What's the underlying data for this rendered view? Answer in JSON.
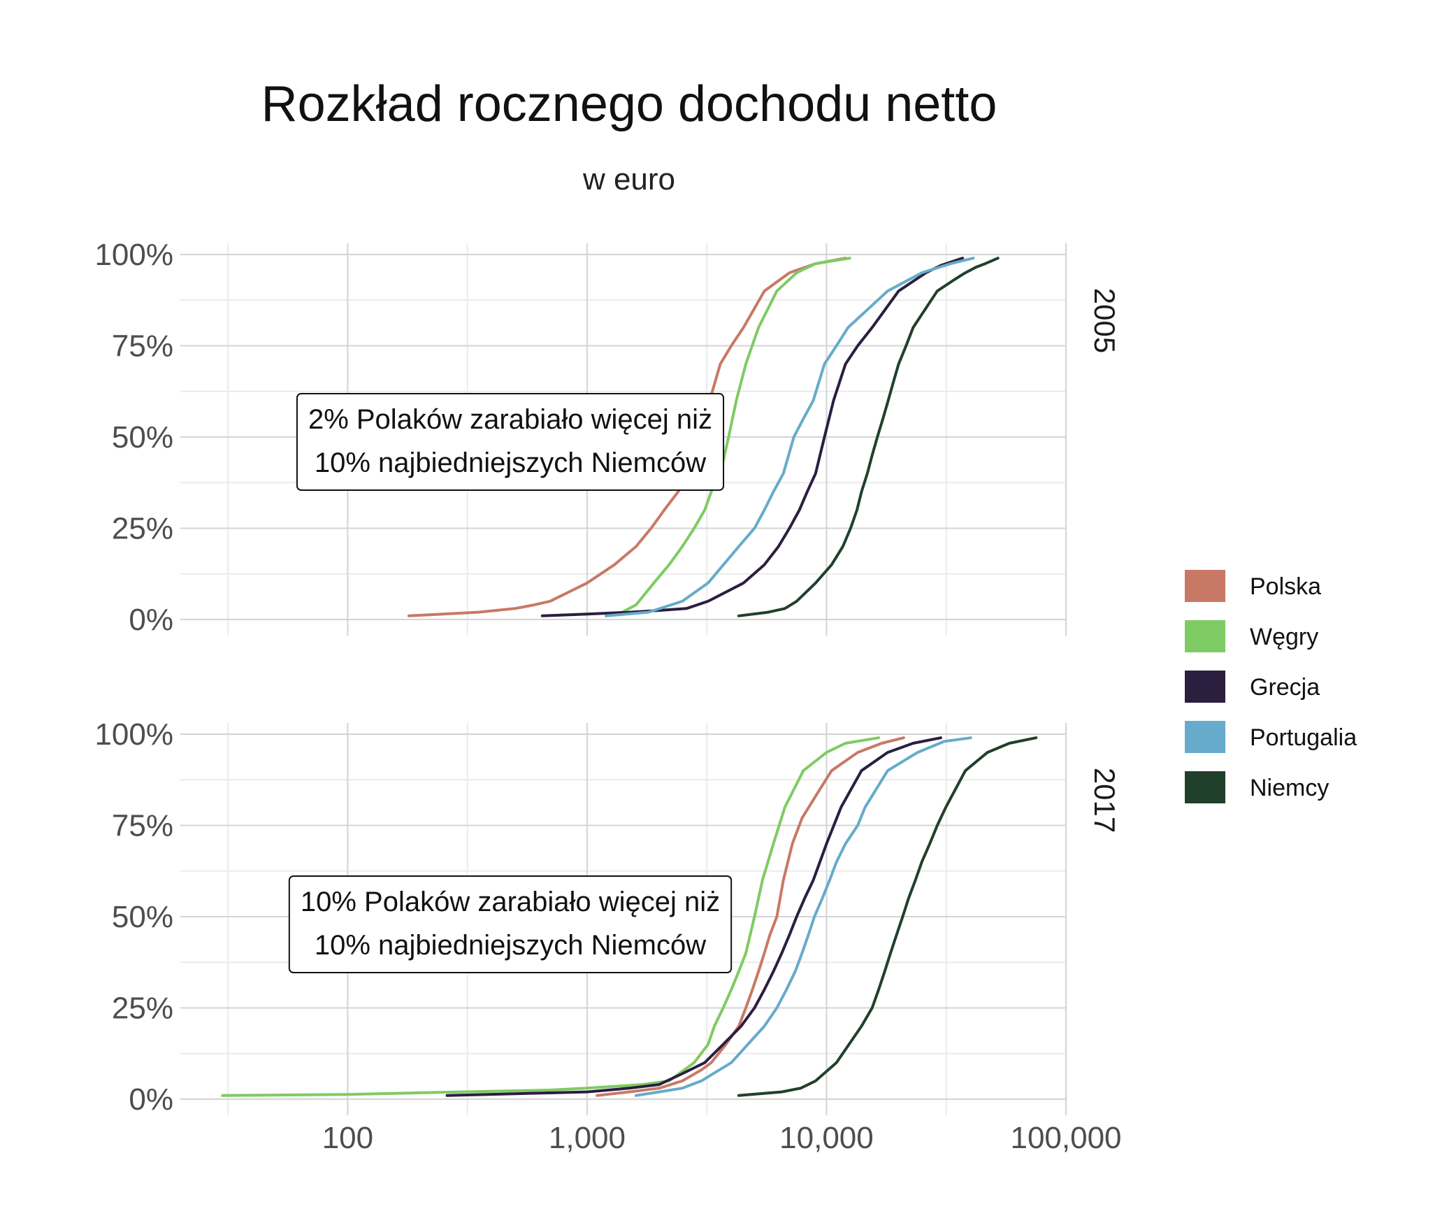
{
  "title": "Rozkład rocznego dochodu netto",
  "subtitle": "w euro",
  "colors": {
    "Polska": "#c87966",
    "Węgry": "#7fcb63",
    "Grecja": "#2c1e3f",
    "Portugalia": "#66abcb",
    "Niemcy": "#21402b"
  },
  "chart_data": {
    "type": "line",
    "x_scale": "log10",
    "xlim": [
      20,
      100000
    ],
    "ylim": [
      0,
      100
    ],
    "x_ticks": [
      100,
      1000,
      10000,
      100000
    ],
    "x_tick_labels": [
      "100",
      "1,000",
      "10,000",
      "100,000"
    ],
    "y_ticks": [
      0,
      25,
      50,
      75,
      100
    ],
    "y_tick_labels": [
      "0%",
      "25%",
      "50%",
      "75%",
      "100%"
    ],
    "grid": true,
    "legend": {
      "position": "right",
      "entries": [
        "Polska",
        "Węgry",
        "Grecja",
        "Portugalia",
        "Niemcy"
      ]
    },
    "panels": [
      {
        "strip": "2005",
        "annotation": [
          "2% Polaków zarabiało więcej niż",
          "10% najbiedniejszych Niemców"
        ],
        "series": [
          {
            "name": "Polska",
            "points": [
              [
                180,
                1
              ],
              [
                250,
                1.5
              ],
              [
                350,
                2
              ],
              [
                500,
                3
              ],
              [
                600,
                4
              ],
              [
                700,
                5
              ],
              [
                1000,
                10
              ],
              [
                1300,
                15
              ],
              [
                1600,
                20
              ],
              [
                1850,
                25
              ],
              [
                2100,
                30
              ],
              [
                2400,
                35
              ],
              [
                2700,
                40
              ],
              [
                3000,
                50
              ],
              [
                3250,
                60
              ],
              [
                3600,
                70
              ],
              [
                4000,
                75
              ],
              [
                4500,
                80
              ],
              [
                5500,
                90
              ],
              [
                7000,
                95
              ],
              [
                9000,
                97.5
              ],
              [
                12000,
                99
              ]
            ]
          },
          {
            "name": "Węgry",
            "points": [
              [
                1200,
                1
              ],
              [
                1400,
                2
              ],
              [
                1600,
                4
              ],
              [
                1900,
                10
              ],
              [
                2200,
                15
              ],
              [
                2500,
                20
              ],
              [
                2800,
                25
              ],
              [
                3100,
                30
              ],
              [
                3300,
                35
              ],
              [
                3600,
                40
              ],
              [
                3900,
                50
              ],
              [
                4200,
                60
              ],
              [
                4600,
                70
              ],
              [
                5200,
                80
              ],
              [
                6200,
                90
              ],
              [
                7500,
                95
              ],
              [
                9000,
                97.5
              ],
              [
                12500,
                99
              ]
            ]
          },
          {
            "name": "Grecja",
            "points": [
              [
                650,
                1
              ],
              [
                1000,
                1.5
              ],
              [
                1500,
                2
              ],
              [
                2000,
                2.5
              ],
              [
                2600,
                3
              ],
              [
                3200,
                5
              ],
              [
                4500,
                10
              ],
              [
                5500,
                15
              ],
              [
                6300,
                20
              ],
              [
                7000,
                25
              ],
              [
                7700,
                30
              ],
              [
                8300,
                35
              ],
              [
                9000,
                40
              ],
              [
                9800,
                50
              ],
              [
                10700,
                60
              ],
              [
                12000,
                70
              ],
              [
                13500,
                75
              ],
              [
                15500,
                80
              ],
              [
                20000,
                90
              ],
              [
                26000,
                95
              ],
              [
                30000,
                97
              ],
              [
                37000,
                99
              ]
            ]
          },
          {
            "name": "Portugalia",
            "points": [
              [
                1200,
                1
              ],
              [
                1800,
                2
              ],
              [
                2500,
                5
              ],
              [
                3200,
                10
              ],
              [
                4300,
                20
              ],
              [
                5000,
                25
              ],
              [
                5500,
                30
              ],
              [
                6000,
                35
              ],
              [
                6600,
                40
              ],
              [
                7300,
                50
              ],
              [
                8000,
                55
              ],
              [
                8800,
                60
              ],
              [
                9800,
                70
              ],
              [
                11000,
                75
              ],
              [
                12300,
                80
              ],
              [
                18000,
                90
              ],
              [
                25000,
                95
              ],
              [
                33000,
                97.5
              ],
              [
                41000,
                99
              ]
            ]
          },
          {
            "name": "Niemcy",
            "points": [
              [
                4300,
                1
              ],
              [
                5700,
                2
              ],
              [
                6700,
                3
              ],
              [
                7500,
                5
              ],
              [
                9000,
                10
              ],
              [
                10500,
                15
              ],
              [
                11700,
                20
              ],
              [
                12600,
                25
              ],
              [
                13400,
                30
              ],
              [
                14000,
                35
              ],
              [
                14800,
                40
              ],
              [
                15500,
                45
              ],
              [
                16300,
                50
              ],
              [
                17200,
                55
              ],
              [
                18100,
                60
              ],
              [
                19000,
                65
              ],
              [
                20000,
                70
              ],
              [
                21500,
                75
              ],
              [
                23000,
                80
              ],
              [
                29000,
                90
              ],
              [
                34000,
                93
              ],
              [
                38000,
                95
              ],
              [
                42000,
                96.5
              ],
              [
                46000,
                97.5
              ],
              [
                52000,
                99
              ]
            ]
          }
        ]
      },
      {
        "strip": "2017",
        "annotation": [
          "10% Polaków zarabiało więcej niż",
          "10% najbiedniejszych Niemców"
        ],
        "series": [
          {
            "name": "Polska",
            "points": [
              [
                1100,
                1
              ],
              [
                1500,
                2
              ],
              [
                2000,
                3
              ],
              [
                2500,
                5
              ],
              [
                3000,
                8
              ],
              [
                3300,
                10
              ],
              [
                3800,
                15
              ],
              [
                4300,
                20
              ],
              [
                4600,
                25
              ],
              [
                4900,
                30
              ],
              [
                5200,
                35
              ],
              [
                5500,
                40
              ],
              [
                5800,
                45
              ],
              [
                6200,
                50
              ],
              [
                6600,
                60
              ],
              [
                7200,
                70
              ],
              [
                7900,
                77
              ],
              [
                9000,
                83
              ],
              [
                10500,
                90
              ],
              [
                13500,
                95
              ],
              [
                17000,
                97.5
              ],
              [
                21000,
                99
              ]
            ]
          },
          {
            "name": "Węgry",
            "points": [
              [
                30,
                1
              ],
              [
                100,
                1.3
              ],
              [
                300,
                2
              ],
              [
                700,
                2.5
              ],
              [
                1000,
                3
              ],
              [
                1700,
                4
              ],
              [
                2200,
                5
              ],
              [
                2800,
                10
              ],
              [
                3200,
                15
              ],
              [
                3400,
                20
              ],
              [
                3700,
                25
              ],
              [
                4000,
                30
              ],
              [
                4300,
                35
              ],
              [
                4600,
                40
              ],
              [
                5000,
                50
              ],
              [
                5400,
                60
              ],
              [
                6000,
                70
              ],
              [
                6700,
                80
              ],
              [
                8000,
                90
              ],
              [
                10000,
                95
              ],
              [
                12000,
                97.5
              ],
              [
                16500,
                99
              ]
            ]
          },
          {
            "name": "Grecja",
            "points": [
              [
                260,
                1
              ],
              [
                500,
                1.5
              ],
              [
                1000,
                2
              ],
              [
                1500,
                3
              ],
              [
                2000,
                4
              ],
              [
                2500,
                7
              ],
              [
                3100,
                10
              ],
              [
                3700,
                15
              ],
              [
                4400,
                20
              ],
              [
                5000,
                25
              ],
              [
                5500,
                30
              ],
              [
                6000,
                35
              ],
              [
                6500,
                40
              ],
              [
                7000,
                45
              ],
              [
                7500,
                50
              ],
              [
                8100,
                55
              ],
              [
                8800,
                60
              ],
              [
                10000,
                70
              ],
              [
                11500,
                80
              ],
              [
                14000,
                90
              ],
              [
                18000,
                95
              ],
              [
                23000,
                97.5
              ],
              [
                30000,
                99
              ]
            ]
          },
          {
            "name": "Portugalia",
            "points": [
              [
                1600,
                1
              ],
              [
                2000,
                2
              ],
              [
                2500,
                3
              ],
              [
                3000,
                5
              ],
              [
                4000,
                10
              ],
              [
                5500,
                20
              ],
              [
                6200,
                25
              ],
              [
                6800,
                30
              ],
              [
                7400,
                35
              ],
              [
                7900,
                40
              ],
              [
                8400,
                45
              ],
              [
                8900,
                50
              ],
              [
                9600,
                55
              ],
              [
                10300,
                60
              ],
              [
                11000,
                65
              ],
              [
                12000,
                70
              ],
              [
                13500,
                75
              ],
              [
                14500,
                80
              ],
              [
                18000,
                90
              ],
              [
                24000,
                95
              ],
              [
                31000,
                98
              ],
              [
                40000,
                99
              ]
            ]
          },
          {
            "name": "Niemcy",
            "points": [
              [
                4300,
                1
              ],
              [
                6500,
                2
              ],
              [
                7800,
                3
              ],
              [
                9000,
                5
              ],
              [
                11000,
                10
              ],
              [
                14000,
                20
              ],
              [
                15500,
                25
              ],
              [
                16500,
                30
              ],
              [
                17500,
                35
              ],
              [
                18500,
                40
              ],
              [
                19600,
                45
              ],
              [
                20800,
                50
              ],
              [
                22000,
                55
              ],
              [
                23500,
                60
              ],
              [
                25000,
                65
              ],
              [
                27000,
                70
              ],
              [
                29000,
                75
              ],
              [
                31500,
                80
              ],
              [
                38000,
                90
              ],
              [
                47000,
                95
              ],
              [
                58000,
                97.5
              ],
              [
                75000,
                99
              ]
            ]
          }
        ]
      }
    ]
  }
}
